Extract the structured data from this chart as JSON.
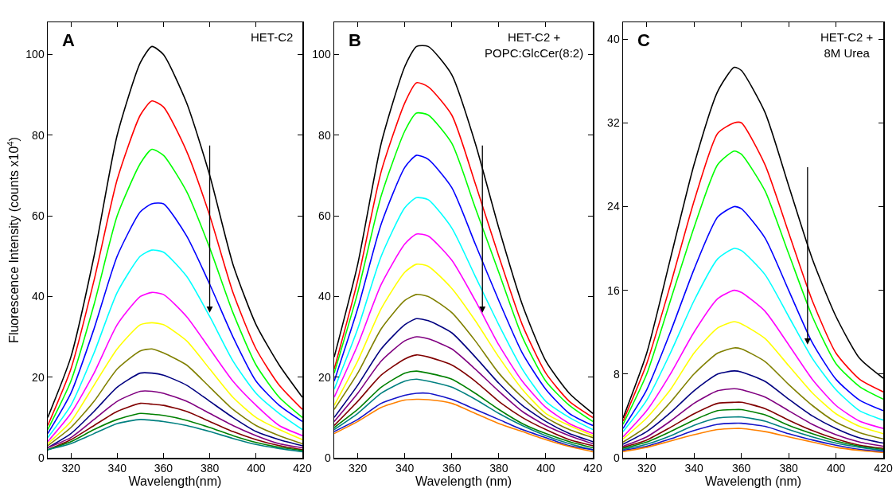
{
  "chart_data": [
    {
      "type": "line",
      "ylabel": "Fluorescence Intensity (counts x10$^{4}$)",
      "xlabel": "Wavelength(nm)",
      "annotations": [
        "A",
        "HET-C2"
      ],
      "marker": "none",
      "line_style": "solid",
      "xlim": [
        310,
        420
      ],
      "xticks": [
        320,
        340,
        360,
        380,
        400,
        420
      ],
      "ylim": [
        0,
        108
      ],
      "yticks": [
        0,
        20,
        40,
        60,
        80,
        100
      ],
      "x": [
        310,
        320,
        330,
        340,
        350,
        355,
        360,
        370,
        380,
        390,
        400,
        410,
        420
      ],
      "series": [
        {
          "color": "#000000",
          "values": [
            10,
            25,
            50,
            80,
            98,
            102,
            100,
            88,
            70,
            48,
            33,
            23,
            15
          ]
        },
        {
          "color": "#ff0000",
          "values": [
            8,
            22,
            44,
            69,
            85,
            88.5,
            87,
            76,
            60,
            41,
            27,
            18,
            12
          ]
        },
        {
          "color": "#00ff00",
          "values": [
            7,
            19,
            38,
            60,
            73,
            76.5,
            75,
            66,
            52,
            36,
            23,
            15,
            10
          ]
        },
        {
          "color": "#0000ff",
          "values": [
            6,
            16,
            32,
            50,
            61,
            63,
            63,
            55,
            43,
            30,
            19,
            13,
            9
          ]
        },
        {
          "color": "#00ffff",
          "values": [
            5,
            13,
            26,
            41,
            50,
            51.5,
            51,
            45,
            35,
            24,
            16,
            11,
            7
          ]
        },
        {
          "color": "#ff00ff",
          "values": [
            4,
            11,
            21,
            33,
            40,
            41,
            40.5,
            35,
            27,
            19,
            13,
            8,
            5.5
          ]
        },
        {
          "color": "#ffff00",
          "values": [
            3.5,
            9,
            18,
            27,
            33,
            33.5,
            33,
            29,
            22,
            15,
            10,
            7,
            4.5
          ]
        },
        {
          "color": "#808000",
          "values": [
            3,
            7.5,
            14,
            22,
            26.5,
            27,
            26,
            23,
            17.5,
            12,
            8,
            5.5,
            3.5
          ]
        },
        {
          "color": "#000080",
          "values": [
            2.5,
            6,
            11.5,
            17.5,
            21,
            21,
            20.5,
            18,
            14,
            10,
            6.5,
            4.5,
            3
          ]
        },
        {
          "color": "#800080",
          "values": [
            2.5,
            5,
            9.5,
            14,
            16.5,
            16.5,
            16,
            14,
            11,
            8,
            5.5,
            3.5,
            2.5
          ]
        },
        {
          "color": "#800000",
          "values": [
            2,
            4.5,
            8,
            11.5,
            13.5,
            13.3,
            13,
            11.5,
            9,
            6.5,
            4.5,
            3,
            2
          ]
        },
        {
          "color": "#008000",
          "values": [
            2,
            4,
            7,
            9.5,
            11,
            10.8,
            10.5,
            9.3,
            7.5,
            5.5,
            3.8,
            2.6,
            1.8
          ]
        },
        {
          "color": "#008080",
          "values": [
            2,
            3.5,
            6,
            8.5,
            9.5,
            9.3,
            9,
            8,
            6.5,
            4.8,
            3.3,
            2.3,
            1.5
          ]
        }
      ]
    },
    {
      "type": "line",
      "xlabel": "Wavelength (nm)",
      "annotations": [
        "B",
        "HET-C2 +\nPOPC:GlcCer(8:2)"
      ],
      "marker": "none",
      "line_style": "solid",
      "xlim": [
        310,
        420
      ],
      "xticks": [
        320,
        340,
        360,
        380,
        400,
        420
      ],
      "ylim": [
        0,
        108
      ],
      "yticks": [
        0,
        20,
        40,
        60,
        80,
        100
      ],
      "x": [
        310,
        320,
        330,
        340,
        345,
        350,
        360,
        370,
        380,
        390,
        400,
        410,
        420
      ],
      "series": [
        {
          "color": "#000000",
          "values": [
            25,
            48,
            78,
            97,
            102,
            102,
            95,
            78,
            57,
            38,
            24,
            16,
            11
          ]
        },
        {
          "color": "#ff0000",
          "values": [
            22,
            44,
            71,
            88,
            93,
            92,
            85,
            68,
            50,
            33,
            21,
            14,
            10
          ]
        },
        {
          "color": "#00ff00",
          "values": [
            21,
            41,
            65,
            81,
            85.5,
            85,
            78,
            62,
            46,
            30,
            19,
            13,
            9
          ]
        },
        {
          "color": "#0000ff",
          "values": [
            19,
            37,
            58,
            72,
            75,
            74,
            67,
            53,
            39,
            26,
            17,
            11,
            8
          ]
        },
        {
          "color": "#00ffff",
          "values": [
            17,
            32,
            50,
            62,
            64.5,
            64,
            57,
            45,
            33,
            22,
            14,
            10,
            7
          ]
        },
        {
          "color": "#ff00ff",
          "values": [
            15,
            28,
            43,
            53,
            55.5,
            55,
            49,
            39,
            28,
            19,
            12.5,
            8.5,
            6
          ]
        },
        {
          "color": "#ffff00",
          "values": [
            13,
            24,
            37,
            46,
            48,
            47.5,
            42,
            34,
            25,
            17,
            11,
            8,
            5.5
          ]
        },
        {
          "color": "#808000",
          "values": [
            12,
            21,
            32,
            39,
            40.5,
            40,
            36,
            29,
            21,
            15,
            10,
            7,
            5
          ]
        },
        {
          "color": "#000080",
          "values": [
            10,
            18,
            27,
            33,
            34.5,
            34,
            31,
            25,
            18.5,
            13,
            9,
            6,
            4
          ]
        },
        {
          "color": "#800080",
          "values": [
            9,
            16,
            24,
            29,
            30,
            29.5,
            27,
            22,
            16.5,
            11.5,
            8,
            5.5,
            3.5
          ]
        },
        {
          "color": "#800000",
          "values": [
            8,
            14,
            20.5,
            24.5,
            25.5,
            25,
            23,
            19,
            14,
            10,
            7,
            4.5,
            3
          ]
        },
        {
          "color": "#008000",
          "values": [
            7.5,
            12,
            17.5,
            21,
            21.5,
            21,
            19.5,
            16,
            12,
            8.5,
            6,
            4,
            2.5
          ]
        },
        {
          "color": "#008080",
          "values": [
            7,
            11,
            16,
            19,
            19.5,
            19,
            17.5,
            14.5,
            11,
            8,
            5.5,
            3.5,
            2
          ]
        },
        {
          "color": "#1414c8",
          "values": [
            6.5,
            9.5,
            13.5,
            15.5,
            16,
            16,
            14.5,
            12,
            9.5,
            7,
            5,
            3,
            2
          ]
        },
        {
          "color": "#ff8000",
          "values": [
            6,
            9,
            12.5,
            14.3,
            14.5,
            14.4,
            13.5,
            11,
            8.5,
            6.5,
            4.5,
            2.8,
            1.5
          ]
        }
      ]
    },
    {
      "type": "line",
      "xlabel": "Wavelength (nm)",
      "annotations": [
        "C",
        "HET-C2 +\n8M Urea"
      ],
      "marker": "none",
      "line_style": "solid",
      "xlim": [
        310,
        420
      ],
      "xticks": [
        320,
        340,
        360,
        380,
        400,
        420
      ],
      "ylim": [
        0,
        41.6
      ],
      "yticks": [
        0,
        8,
        16,
        24,
        32,
        40
      ],
      "x": [
        310,
        320,
        330,
        340,
        350,
        357,
        360,
        370,
        380,
        390,
        400,
        410,
        420
      ],
      "series": [
        {
          "color": "#000000",
          "values": [
            3.8,
            10,
            19,
            28,
            35,
            37.3,
            37,
            33,
            26,
            19,
            13.5,
            9.5,
            7.6
          ]
        },
        {
          "color": "#ff0000",
          "values": [
            3.5,
            9,
            16.5,
            24.5,
            31,
            32,
            32,
            28,
            21.5,
            15,
            10,
            7.5,
            6.3
          ]
        },
        {
          "color": "#00ff00",
          "values": [
            3.2,
            8,
            15,
            22,
            28,
            29.3,
            29,
            25.5,
            19.5,
            13.5,
            9,
            6.8,
            5.6
          ]
        },
        {
          "color": "#0000ff",
          "values": [
            2.8,
            6.5,
            12,
            18,
            23,
            24,
            23.8,
            21,
            16,
            11,
            7.5,
            5.5,
            4.5
          ]
        },
        {
          "color": "#00ffff",
          "values": [
            2.5,
            5.5,
            10,
            15,
            19,
            20,
            19.8,
            17.5,
            13.5,
            9.5,
            6.5,
            4.5,
            3.6
          ]
        },
        {
          "color": "#ff00ff",
          "values": [
            2,
            4.5,
            8,
            12,
            15.2,
            16,
            15.8,
            14,
            10.8,
            7.5,
            5,
            3.5,
            2.8
          ]
        },
        {
          "color": "#ffff00",
          "values": [
            1.8,
            3.8,
            6.5,
            10,
            12.4,
            13,
            12.8,
            11.4,
            8.8,
            6.2,
            4.2,
            3,
            2.3
          ]
        },
        {
          "color": "#808000",
          "values": [
            1.5,
            3,
            5.3,
            8,
            10,
            10.5,
            10.4,
            9.2,
            7,
            5,
            3.4,
            2.4,
            1.8
          ]
        },
        {
          "color": "#000080",
          "values": [
            1.3,
            2.5,
            4.3,
            6.4,
            8,
            8.3,
            8.2,
            7.3,
            5.6,
            4,
            2.8,
            1.9,
            1.4
          ]
        },
        {
          "color": "#800080",
          "values": [
            1.1,
            2,
            3.5,
            5.2,
            6.4,
            6.6,
            6.5,
            5.8,
            4.5,
            3.2,
            2.2,
            1.5,
            1.1
          ]
        },
        {
          "color": "#800000",
          "values": [
            1,
            1.7,
            2.9,
            4.2,
            5.2,
            5.3,
            5.3,
            4.7,
            3.6,
            2.6,
            1.8,
            1.2,
            0.9
          ]
        },
        {
          "color": "#008000",
          "values": [
            0.9,
            1.5,
            2.5,
            3.6,
            4.5,
            4.6,
            4.6,
            4.1,
            3.1,
            2.3,
            1.6,
            1.1,
            0.8
          ]
        },
        {
          "color": "#008080",
          "values": [
            0.8,
            1.3,
            2.1,
            3.1,
            3.8,
            3.9,
            3.9,
            3.5,
            2.7,
            2,
            1.4,
            1,
            0.7
          ]
        },
        {
          "color": "#1414c8",
          "values": [
            0.7,
            1.1,
            1.8,
            2.6,
            3.2,
            3.3,
            3.3,
            3,
            2.3,
            1.7,
            1.2,
            0.8,
            0.6
          ]
        },
        {
          "color": "#ff8000",
          "values": [
            0.6,
            1,
            1.6,
            2.2,
            2.7,
            2.8,
            2.8,
            2.5,
            2,
            1.5,
            1,
            0.7,
            0.5
          ]
        }
      ]
    }
  ]
}
